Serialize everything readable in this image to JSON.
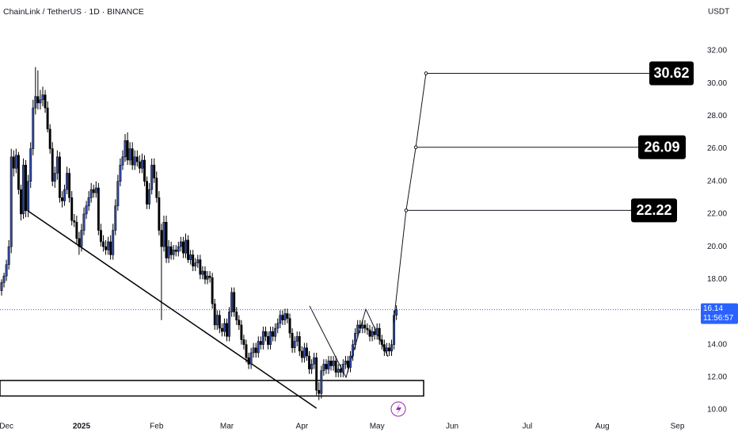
{
  "chart_data": {
    "type": "candlestick",
    "title": "ChainLink / TetherUS · 1D · BINANCE",
    "currency": "USDT",
    "up_color": "#2f4aa8",
    "down_color": "#000000",
    "open": [
      17.3,
      17.8,
      18.2,
      18.9,
      20.0,
      25.5,
      24.8,
      25.6,
      23.5,
      22.0,
      25.0,
      22.2,
      24.0,
      26.0,
      28.5,
      29.2,
      28.8,
      29.0,
      29.3,
      28.5,
      27.2,
      26.0,
      24.0,
      24.5,
      25.5,
      23.0,
      22.8,
      23.5,
      24.5,
      23.0,
      21.6,
      21.5,
      20.5,
      20.0,
      21.0,
      22.0,
      22.5,
      23.0,
      23.5,
      23.3,
      23.6,
      21.0,
      20.3,
      20.0,
      19.8,
      20.3,
      19.5,
      21.0,
      22.5,
      24.0,
      25.0,
      25.5,
      26.5,
      25.3,
      26.0,
      25.0,
      25.5,
      25.2,
      24.8,
      25.3,
      24.0,
      22.6,
      23.5,
      25.0,
      24.2,
      23.0,
      21.0,
      20.0,
      21.5,
      19.3,
      20.0,
      19.5,
      19.8,
      19.7,
      20.0,
      20.3,
      19.6,
      20.4,
      19.2,
      19.5,
      18.8,
      19.0,
      19.2,
      18.3,
      18.5,
      18.0,
      18.2,
      18.1,
      16.5,
      15.2,
      15.8,
      15.0,
      14.8,
      15.3,
      14.5,
      16.0,
      17.2,
      16.0,
      15.5,
      15.2,
      14.3,
      14.0,
      13.2,
      12.8,
      13.5,
      13.8,
      13.5,
      14.2,
      14.0,
      14.8,
      14.5,
      14.0,
      14.8,
      14.5,
      15.0,
      15.3,
      15.8,
      15.5,
      15.9,
      15.6,
      14.7,
      13.8,
      14.2,
      14.5,
      13.6,
      13.2,
      13.8,
      13.3,
      12.5,
      12.8,
      13.2,
      11.2,
      11.0,
      12.4,
      12.8,
      12.5,
      13.0,
      12.7,
      13.0,
      12.3,
      12.5,
      12.3,
      12.8,
      13.0,
      12.6,
      13.3,
      14.0,
      14.7,
      15.2,
      15.0,
      15.2,
      15.0,
      14.9,
      14.5,
      14.8,
      14.6,
      15.0,
      14.3,
      14.0,
      13.6,
      13.8,
      13.6,
      14.0,
      15.8
    ],
    "high": [
      18.0,
      18.4,
      19.2,
      20.4,
      26.0,
      25.9,
      26.0,
      25.8,
      23.8,
      25.4,
      25.3,
      24.4,
      26.4,
      29.0,
      31.0,
      30.8,
      29.6,
      29.8,
      29.6,
      28.9,
      27.5,
      26.4,
      24.9,
      25.9,
      25.8,
      23.4,
      23.8,
      24.9,
      24.8,
      23.4,
      22.0,
      21.9,
      20.9,
      21.4,
      22.4,
      22.8,
      23.4,
      23.9,
      23.8,
      24.0,
      23.9,
      21.4,
      20.7,
      20.4,
      20.6,
      20.7,
      21.4,
      22.9,
      24.4,
      25.4,
      25.9,
      26.9,
      27.0,
      26.4,
      26.4,
      25.9,
      25.9,
      25.6,
      25.7,
      25.6,
      24.3,
      23.9,
      25.4,
      25.4,
      24.6,
      23.4,
      21.4,
      21.9,
      21.9,
      20.4,
      20.3,
      20.1,
      20.1,
      20.3,
      20.6,
      20.6,
      20.8,
      20.7,
      19.8,
      19.8,
      19.3,
      19.5,
      19.5,
      18.8,
      18.8,
      18.5,
      18.5,
      18.4,
      16.8,
      16.1,
      16.1,
      15.3,
      15.6,
      15.6,
      16.3,
      17.5,
      17.5,
      16.3,
      15.8,
      15.5,
      14.6,
      14.3,
      13.5,
      13.8,
      14.1,
      14.1,
      14.5,
      14.5,
      15.1,
      15.1,
      14.8,
      15.1,
      15.1,
      15.3,
      15.6,
      16.1,
      16.1,
      16.2,
      16.2,
      15.9,
      15.0,
      14.5,
      14.8,
      14.8,
      13.9,
      14.1,
      14.1,
      13.6,
      13.1,
      13.5,
      13.5,
      11.7,
      12.7,
      13.1,
      13.1,
      13.3,
      13.3,
      13.3,
      13.3,
      12.8,
      12.8,
      13.1,
      13.3,
      13.3,
      13.6,
      14.3,
      15.0,
      15.5,
      15.5,
      15.5,
      15.5,
      15.3,
      15.2,
      15.1,
      15.1,
      15.3,
      15.3,
      14.6,
      14.3,
      14.1,
      14.1,
      14.3,
      16.1,
      16.4
    ],
    "low": [
      17.0,
      17.5,
      17.9,
      18.6,
      19.6,
      24.3,
      24.5,
      23.2,
      21.6,
      21.7,
      21.8,
      21.8,
      23.6,
      25.6,
      28.1,
      28.4,
      28.4,
      28.6,
      28.2,
      27.0,
      25.7,
      23.7,
      23.6,
      24.1,
      22.7,
      22.4,
      22.5,
      23.2,
      22.7,
      21.3,
      21.2,
      20.2,
      19.5,
      19.7,
      20.7,
      21.7,
      22.2,
      22.7,
      23.0,
      23.0,
      20.7,
      20.0,
      19.7,
      19.5,
      19.5,
      19.2,
      19.2,
      20.7,
      22.2,
      23.7,
      24.7,
      25.2,
      25.0,
      25.0,
      24.7,
      24.7,
      24.9,
      24.5,
      24.5,
      23.7,
      22.3,
      22.3,
      23.2,
      23.9,
      22.7,
      20.7,
      15.5,
      19.7,
      19.0,
      19.0,
      19.2,
      19.2,
      19.4,
      19.4,
      19.7,
      19.3,
      19.3,
      19.0,
      18.9,
      18.5,
      18.5,
      18.7,
      18.0,
      18.0,
      17.7,
      17.7,
      17.8,
      16.2,
      14.9,
      14.9,
      14.7,
      14.5,
      14.5,
      14.2,
      14.2,
      15.7,
      15.7,
      15.2,
      14.9,
      14.0,
      13.7,
      12.9,
      12.5,
      12.5,
      13.2,
      13.2,
      13.2,
      13.7,
      13.7,
      14.2,
      13.7,
      13.7,
      14.2,
      14.2,
      14.7,
      15.0,
      15.2,
      15.2,
      15.3,
      14.4,
      13.5,
      13.5,
      13.9,
      13.3,
      12.9,
      12.9,
      13.0,
      12.2,
      12.2,
      12.5,
      10.9,
      10.6,
      10.7,
      12.1,
      12.2,
      12.2,
      12.4,
      12.4,
      12.0,
      12.0,
      12.0,
      12.0,
      12.5,
      12.3,
      12.3,
      13.0,
      13.7,
      14.4,
      14.7,
      14.7,
      14.7,
      14.6,
      14.2,
      14.2,
      14.3,
      14.3,
      14.0,
      13.7,
      13.3,
      13.3,
      13.3,
      13.3,
      13.7,
      15.5
    ],
    "close": [
      17.8,
      18.2,
      18.9,
      20.0,
      25.5,
      24.8,
      25.6,
      23.5,
      22.0,
      25.0,
      22.2,
      24.0,
      26.0,
      28.5,
      29.2,
      28.8,
      29.0,
      29.3,
      28.5,
      27.2,
      26.0,
      24.0,
      24.5,
      25.5,
      23.0,
      22.8,
      23.5,
      24.5,
      23.0,
      21.6,
      21.5,
      20.5,
      20.0,
      21.0,
      22.0,
      22.5,
      23.0,
      23.5,
      23.3,
      23.6,
      21.0,
      20.3,
      20.0,
      19.8,
      20.3,
      19.5,
      21.0,
      22.5,
      24.0,
      25.0,
      25.5,
      26.5,
      25.3,
      26.0,
      25.0,
      25.5,
      25.2,
      24.8,
      25.3,
      24.0,
      22.6,
      23.5,
      25.0,
      24.2,
      23.0,
      21.0,
      20.0,
      21.5,
      19.3,
      20.0,
      19.5,
      19.8,
      19.7,
      20.0,
      20.3,
      19.6,
      20.4,
      19.2,
      19.5,
      18.8,
      19.0,
      19.2,
      18.3,
      18.5,
      18.0,
      18.2,
      18.1,
      16.5,
      15.2,
      15.8,
      15.0,
      14.8,
      15.3,
      14.5,
      16.0,
      17.2,
      16.0,
      15.5,
      15.2,
      14.3,
      14.0,
      13.2,
      12.8,
      13.5,
      13.8,
      13.5,
      14.2,
      14.0,
      14.8,
      14.5,
      14.0,
      14.8,
      14.5,
      15.0,
      15.3,
      15.8,
      15.5,
      15.9,
      15.6,
      14.7,
      13.8,
      14.2,
      14.5,
      13.6,
      13.2,
      13.8,
      13.3,
      12.5,
      12.8,
      13.2,
      11.2,
      11.0,
      12.4,
      12.8,
      12.5,
      13.0,
      12.7,
      13.0,
      12.3,
      12.5,
      12.3,
      12.8,
      13.0,
      12.6,
      13.3,
      14.0,
      14.7,
      15.2,
      15.0,
      15.2,
      15.0,
      14.9,
      14.5,
      14.8,
      14.6,
      15.0,
      14.3,
      14.0,
      13.6,
      13.8,
      13.6,
      14.0,
      15.8,
      16.14
    ],
    "xlim": [
      -0.65,
      287
    ],
    "ylim": [
      9.37,
      35.11
    ],
    "xticks": [
      {
        "value": 2,
        "label": "Dec"
      },
      {
        "value": 33,
        "label": "2025"
      },
      {
        "value": 64,
        "label": "Feb"
      },
      {
        "value": 93,
        "label": "Mar"
      },
      {
        "value": 124,
        "label": "Apr"
      },
      {
        "value": 155,
        "label": "May"
      },
      {
        "value": 186,
        "label": "Jun"
      },
      {
        "value": 217,
        "label": "Jul"
      },
      {
        "value": 248,
        "label": "Aug"
      },
      {
        "value": 279,
        "label": "Sep"
      }
    ],
    "yticks": [
      {
        "value": 10,
        "label": "10.00"
      },
      {
        "value": 12,
        "label": "12.00"
      },
      {
        "value": 14,
        "label": "14.00"
      },
      {
        "value": 16,
        "label": "16.00"
      },
      {
        "value": 18,
        "label": "18.00"
      },
      {
        "value": 20,
        "label": "20.00"
      },
      {
        "value": 22,
        "label": "22.00"
      },
      {
        "value": 24,
        "label": "24.00"
      },
      {
        "value": 26,
        "label": "26.00"
      },
      {
        "value": 28,
        "label": "28.00"
      },
      {
        "value": 30,
        "label": "30.00"
      },
      {
        "value": 32,
        "label": "32.00"
      }
    ],
    "last_price": 16.14,
    "countdown": "11:56:57",
    "trendline": {
      "x": [
        10.8,
        130.0
      ],
      "y": [
        22.2,
        10.1
      ]
    },
    "support_zone": [
      10.85,
      11.8
    ],
    "projection_start": {
      "x": 161.8,
      "y": 15.34
    },
    "targets": [
      {
        "x": 175.2,
        "value": 30.62
      },
      {
        "x": 171.0,
        "value": 26.09
      },
      {
        "x": 167.0,
        "value": 22.22
      }
    ]
  }
}
